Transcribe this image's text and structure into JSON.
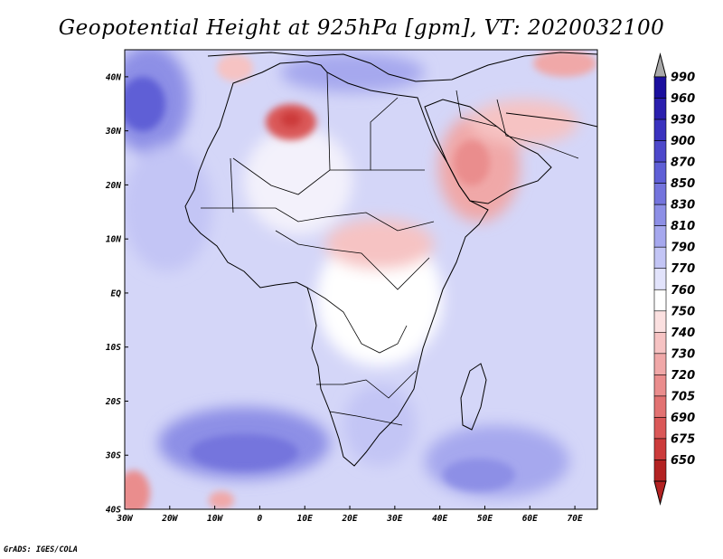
{
  "title": "Geopotential Height at 925hPa [gpm], VT: 2020032100",
  "credit": "GrADS: IGES/COLA",
  "map": {
    "lon_range": [
      -30,
      75
    ],
    "lat_range": [
      -40,
      45
    ],
    "x_ticks": [
      {
        "value": -30,
        "label": "30W"
      },
      {
        "value": -20,
        "label": "20W"
      },
      {
        "value": -10,
        "label": "10W"
      },
      {
        "value": 0,
        "label": "0"
      },
      {
        "value": 10,
        "label": "10E"
      },
      {
        "value": 20,
        "label": "20E"
      },
      {
        "value": 30,
        "label": "30E"
      },
      {
        "value": 40,
        "label": "40E"
      },
      {
        "value": 50,
        "label": "50E"
      },
      {
        "value": 60,
        "label": "60E"
      },
      {
        "value": 70,
        "label": "70E"
      }
    ],
    "y_ticks": [
      {
        "value": 40,
        "label": "40N"
      },
      {
        "value": 30,
        "label": "30N"
      },
      {
        "value": 20,
        "label": "20N"
      },
      {
        "value": 10,
        "label": "10N"
      },
      {
        "value": 0,
        "label": "EQ"
      },
      {
        "value": -10,
        "label": "10S"
      },
      {
        "value": -20,
        "label": "20S"
      },
      {
        "value": -30,
        "label": "30S"
      },
      {
        "value": -40,
        "label": "40S"
      }
    ],
    "background_color": "#d4d6f8"
  },
  "colorbar": {
    "levels": [
      {
        "label": "990",
        "color": "#1b0f9e"
      },
      {
        "label": "960",
        "color": "#2a1fae"
      },
      {
        "label": "930",
        "color": "#3a32bf"
      },
      {
        "label": "900",
        "color": "#4d48cb"
      },
      {
        "label": "870",
        "color": "#5f5fd6"
      },
      {
        "label": "850",
        "color": "#7474dd"
      },
      {
        "label": "830",
        "color": "#8d8fe6"
      },
      {
        "label": "810",
        "color": "#a6a8ee"
      },
      {
        "label": "790",
        "color": "#c3c5f5"
      },
      {
        "label": "770",
        "color": "#e2e3fb"
      },
      {
        "label": "760",
        "color": "#ffffff"
      },
      {
        "label": "750",
        "color": "#fbe0e0"
      },
      {
        "label": "740",
        "color": "#f6c3c3"
      },
      {
        "label": "730",
        "color": "#f0a8a8"
      },
      {
        "label": "720",
        "color": "#ea8d8d"
      },
      {
        "label": "705",
        "color": "#e27272"
      },
      {
        "label": "690",
        "color": "#da5858"
      },
      {
        "label": "675",
        "color": "#cc3b3b"
      },
      {
        "label": "650",
        "color": "#b32222"
      }
    ],
    "top_arrow_color": "#a9a9a9",
    "bottom_arrow_color": "#b32222"
  }
}
